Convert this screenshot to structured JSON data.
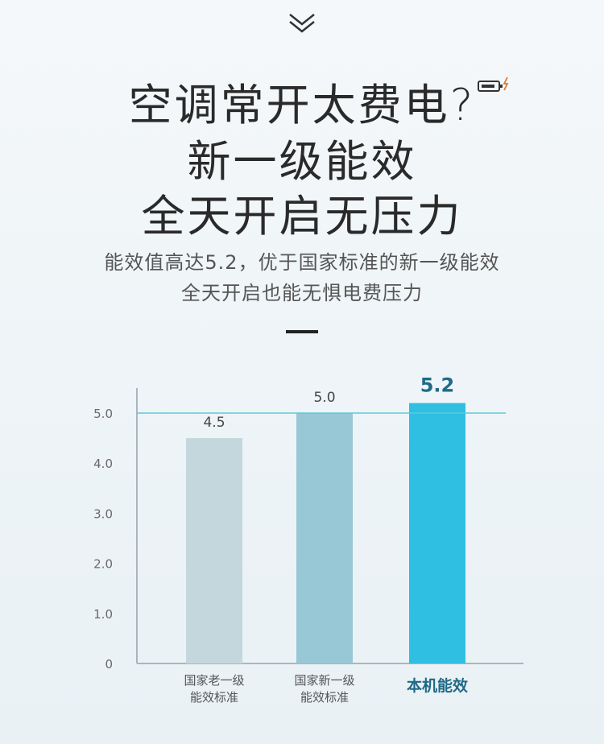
{
  "header": {
    "line1": "空调常开太费电?",
    "line2": "新一级能效",
    "line3": "全天开启无压力",
    "sub1": "能效值高达5.2，优于国家标准的新一级能效",
    "sub2": "全天开启也能无惧电费压力"
  },
  "chart_data": {
    "type": "bar",
    "categories": [
      [
        "国家老一级",
        "能效标准"
      ],
      [
        "国家新一级",
        "能效标准"
      ],
      [
        "本机能效"
      ]
    ],
    "values": [
      4.5,
      5.0,
      5.2
    ],
    "value_labels": [
      "4.5",
      "5.0",
      "5.2"
    ],
    "bar_colors": [
      "#c3d7dd",
      "#98c7d6",
      "#2fbfe2"
    ],
    "y_ticks": [
      0,
      1,
      2,
      3,
      4,
      5
    ],
    "y_tick_labels": [
      "0",
      "1.0",
      "2.0",
      "3.0",
      "4.0",
      "5.0"
    ],
    "ylim": [
      0,
      5.2
    ],
    "reference_line": {
      "value": 5.0,
      "color": "#5fc9dc"
    },
    "highlight_color": "#1f6a87"
  }
}
